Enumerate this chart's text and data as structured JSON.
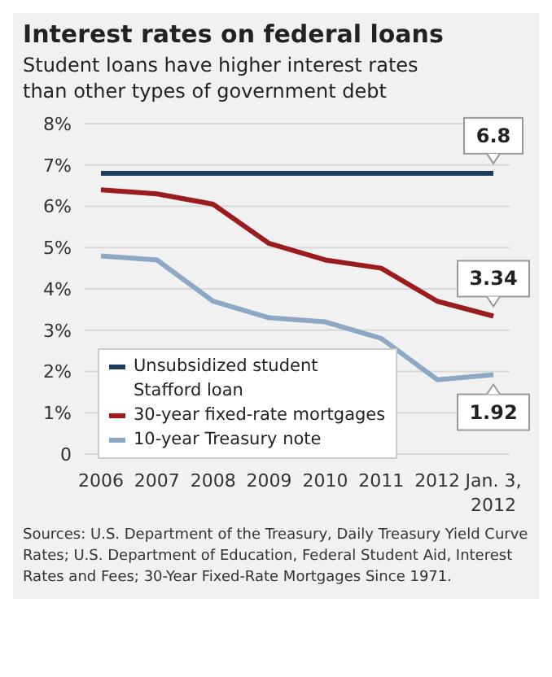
{
  "chart_data": {
    "type": "line",
    "title": "Interest rates on federal loans",
    "subtitle": "Student loans have higher interest rates than other types of government debt",
    "categories": [
      "2006",
      "2007",
      "2008",
      "2009",
      "2010",
      "2011",
      "2012",
      "Jan. 3, 2012"
    ],
    "series": [
      {
        "name": "Unsubsidized student Stafford loan",
        "color": "#1f3a5f",
        "values": [
          6.8,
          6.8,
          6.8,
          6.8,
          6.8,
          6.8,
          6.8,
          6.8
        ],
        "value_labels": [
          null,
          null,
          null,
          null,
          null,
          null,
          null,
          "6.8"
        ]
      },
      {
        "name": "30-year fixed-rate mortgages",
        "color": "#9b1c1f",
        "values": [
          6.4,
          6.3,
          6.05,
          5.1,
          4.7,
          4.5,
          3.7,
          3.34
        ],
        "value_labels": [
          null,
          null,
          null,
          null,
          null,
          null,
          null,
          "3.34"
        ]
      },
      {
        "name": "10-year Treasury note",
        "color": "#8ca8c4",
        "values": [
          4.8,
          4.7,
          3.7,
          3.3,
          3.2,
          2.8,
          1.8,
          1.92
        ],
        "value_labels": [
          null,
          null,
          null,
          null,
          null,
          null,
          null,
          "1.92"
        ]
      }
    ],
    "ylim": [
      0,
      8
    ],
    "yticks": [
      {
        "value": 0,
        "label": "0"
      },
      {
        "value": 1,
        "label": "1%"
      },
      {
        "value": 2,
        "label": "2%"
      },
      {
        "value": 3,
        "label": "3%"
      },
      {
        "value": 4,
        "label": "4%"
      },
      {
        "value": 5,
        "label": "5%"
      },
      {
        "value": 6,
        "label": "6%"
      },
      {
        "value": 7,
        "label": "7%"
      },
      {
        "value": 8,
        "label": "8%"
      }
    ],
    "grid": "y",
    "legend": "bottom left",
    "marker": "none",
    "line_style": "solid",
    "annotations": [
      "Sources: U.S. Department of the Treasury, Daily Treasury Yield Curve Rates; U.S. Department of Education, Federal Student Aid, Interest Rates and Fees; 30-Year Fixed-Rate Mortgages Since 1971."
    ]
  }
}
